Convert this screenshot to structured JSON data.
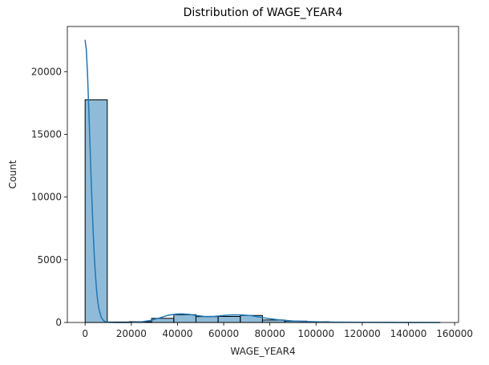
{
  "chart_data": {
    "type": "bar",
    "title": "Distribution of WAGE_YEAR4",
    "xlabel": "WAGE_YEAR4",
    "ylabel": "Count",
    "xlim": [
      -7700,
      161700
    ],
    "ylim": [
      0,
      23600
    ],
    "xticks": [
      0,
      20000,
      40000,
      60000,
      80000,
      100000,
      120000,
      140000,
      160000
    ],
    "yticks": [
      0,
      5000,
      10000,
      15000,
      20000
    ],
    "grid": false,
    "legend": "none",
    "bar_color": "#1f77b4",
    "bar_fill_opacity": 0.5,
    "bar_edge_color": "#000000",
    "kde_color": "#1f77b4",
    "bins": [
      {
        "x0": 0,
        "x1": 9600,
        "count": 17750
      },
      {
        "x0": 9600,
        "x1": 19200,
        "count": 40
      },
      {
        "x0": 19200,
        "x1": 28800,
        "count": 60
      },
      {
        "x0": 28800,
        "x1": 38400,
        "count": 330
      },
      {
        "x0": 38400,
        "x1": 48000,
        "count": 620
      },
      {
        "x0": 48000,
        "x1": 57600,
        "count": 470
      },
      {
        "x0": 57600,
        "x1": 67200,
        "count": 480
      },
      {
        "x0": 67200,
        "x1": 76800,
        "count": 560
      },
      {
        "x0": 76800,
        "x1": 86400,
        "count": 200
      },
      {
        "x0": 86400,
        "x1": 96000,
        "count": 110
      },
      {
        "x0": 96000,
        "x1": 105600,
        "count": 60
      },
      {
        "x0": 105600,
        "x1": 115200,
        "count": 30
      },
      {
        "x0": 115200,
        "x1": 124800,
        "count": 15
      },
      {
        "x0": 124800,
        "x1": 134400,
        "count": 10
      },
      {
        "x0": 134400,
        "x1": 144000,
        "count": 5
      },
      {
        "x0": 144000,
        "x1": 153600,
        "count": 5
      }
    ],
    "kde": {
      "x": [
        0,
        500,
        1000,
        1500,
        2000,
        2500,
        3000,
        3500,
        4000,
        4500,
        5000,
        5500,
        6000,
        7000,
        8000,
        9000,
        10000,
        11000,
        12000,
        14000,
        17000,
        20000,
        24000,
        28000,
        32000,
        36000,
        40000,
        42000,
        45000,
        48000,
        52000,
        56000,
        60000,
        64000,
        68000,
        72000,
        76000,
        80000,
        85000,
        90000,
        95000,
        100000,
        105000,
        110000,
        120000,
        130000,
        140000,
        153600
      ],
      "y": [
        22500,
        21800,
        20000,
        17500,
        14800,
        12000,
        9500,
        7200,
        5200,
        3700,
        2500,
        1650,
        1050,
        400,
        140,
        50,
        20,
        10,
        5,
        3,
        4,
        10,
        40,
        150,
        350,
        580,
        680,
        690,
        650,
        560,
        470,
        490,
        560,
        610,
        600,
        540,
        420,
        300,
        190,
        120,
        80,
        55,
        35,
        25,
        12,
        6,
        3,
        2
      ]
    }
  }
}
